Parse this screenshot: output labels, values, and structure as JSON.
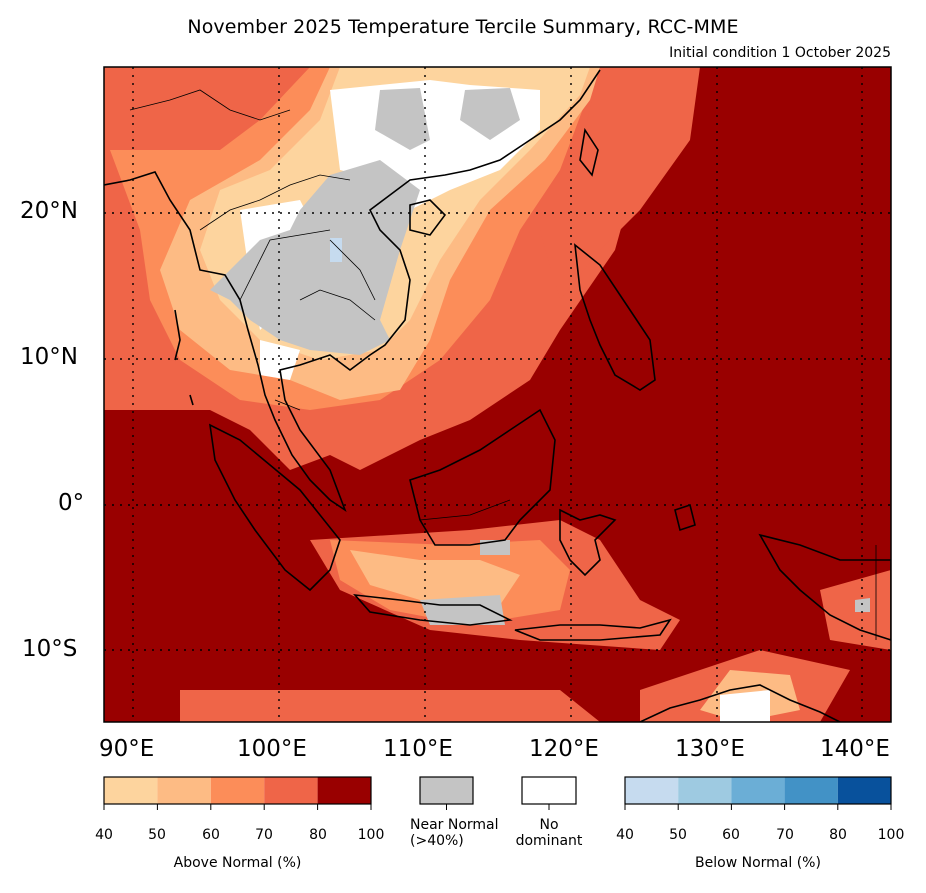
{
  "title": "November 2025 Temperature Tercile Summary, RCC-MME",
  "subtitle": "Initial condition 1 October 2025",
  "map": {
    "lon_range": [
      88,
      142
    ],
    "lat_range": [
      -15,
      30
    ],
    "lat_ticks": [
      "20°N",
      "10°N",
      "0°",
      "10°S"
    ],
    "lon_ticks": [
      "90°E",
      "100°E",
      "110°E",
      "120°E",
      "130°E",
      "140°E"
    ],
    "graticule": "dotted"
  },
  "colors": {
    "above": [
      "#fdd49e",
      "#fdbb84",
      "#fc8d59",
      "#ef6548",
      "#990000"
    ],
    "near_normal": "#c4c4c4",
    "no_dominant": "#ffffff",
    "below": [
      "#c6dbef",
      "#9ecae1",
      "#6baed6",
      "#4292c6",
      "#08519c"
    ]
  },
  "legend": {
    "above": {
      "title": "Above Normal (%)",
      "ticks": [
        "40",
        "50",
        "60",
        "70",
        "80",
        "100"
      ]
    },
    "near_normal": {
      "label_line1": "Near Normal",
      "label_line2": "(>40%)"
    },
    "no_dominant": {
      "label_line1": "No",
      "label_line2": "dominant"
    },
    "below": {
      "title": "Below Normal (%)",
      "ticks": [
        "40",
        "50",
        "60",
        "70",
        "80",
        "100"
      ]
    }
  }
}
